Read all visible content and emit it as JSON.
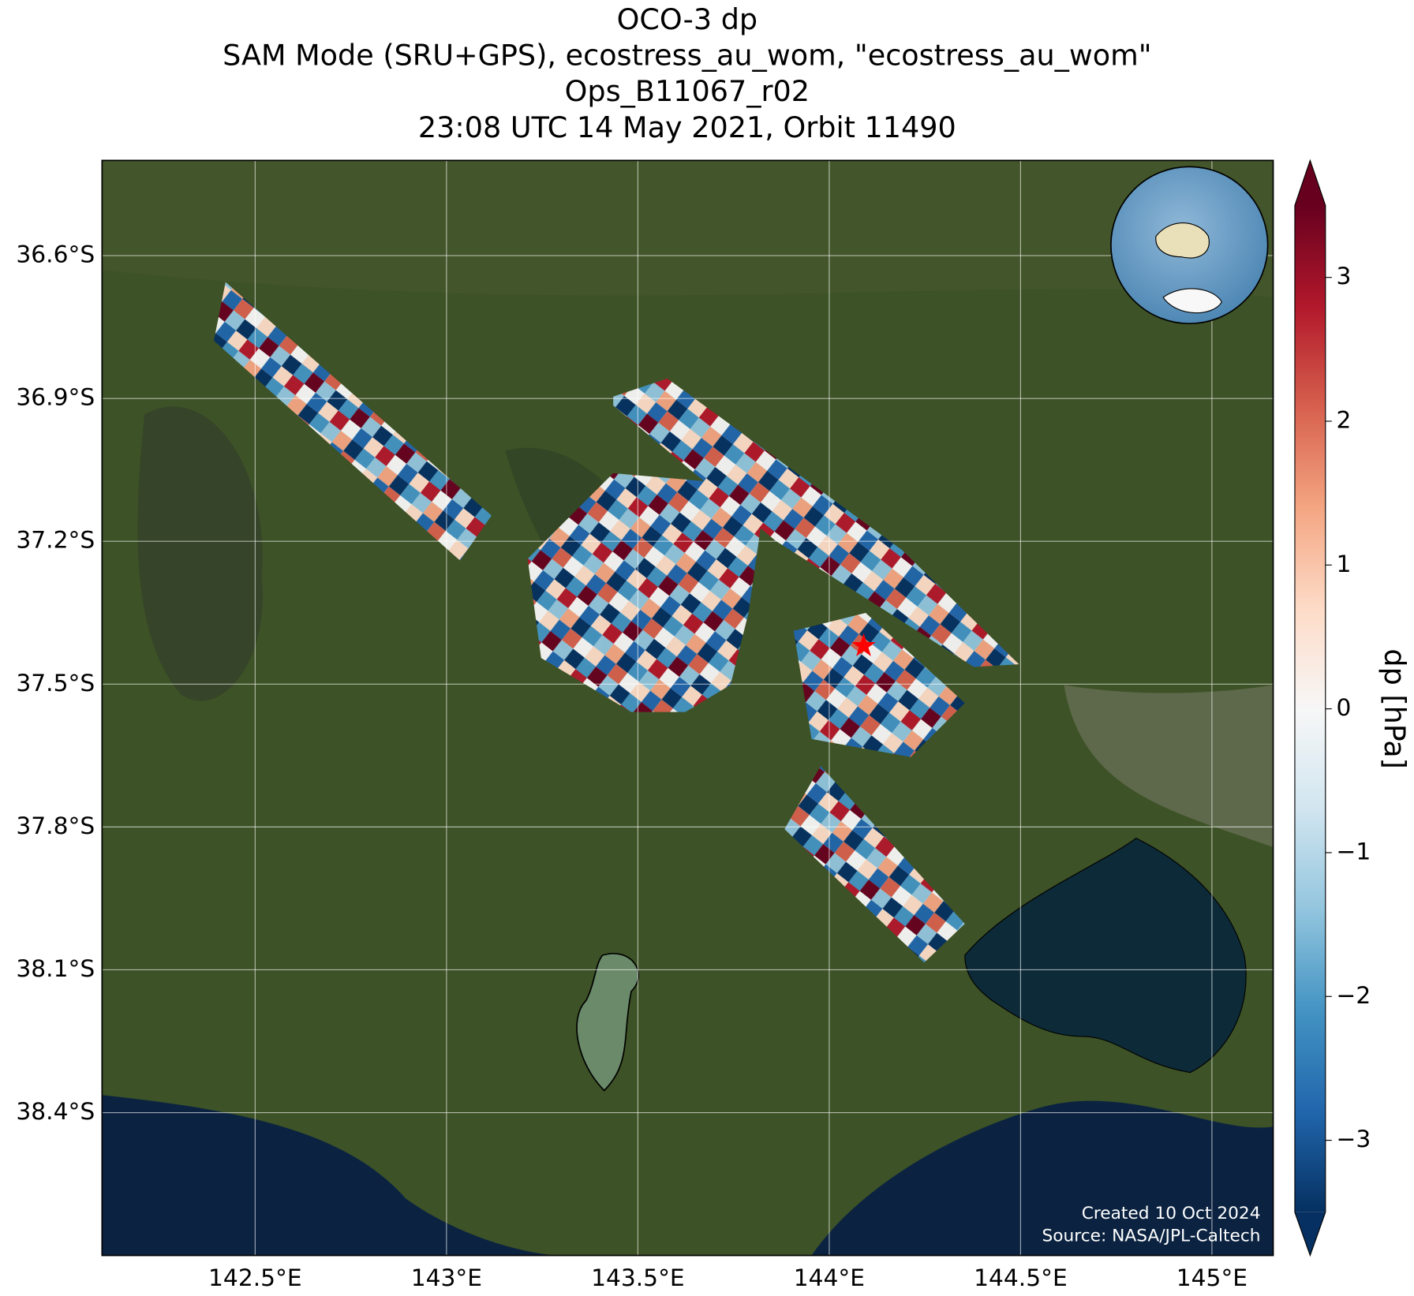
{
  "chart_data": {
    "type": "map",
    "title_lines": [
      "OCO-3 dp",
      "SAM Mode (SRU+GPS), ecostress_au_wom, \"ecostress_au_wom\"",
      "Ops_B11067_r02",
      "23:08 UTC 14 May 2021, Orbit 11490"
    ],
    "xlim": [
      142.1,
      145.16
    ],
    "ylim": [
      -38.7,
      -36.4
    ],
    "xticks": [
      {
        "value": 142.5,
        "label": "142.5°E"
      },
      {
        "value": 143,
        "label": "143°E"
      },
      {
        "value": 143.5,
        "label": "143.5°E"
      },
      {
        "value": 144,
        "label": "144°E"
      },
      {
        "value": 144.5,
        "label": "144.5°E"
      },
      {
        "value": 145,
        "label": "145°E"
      }
    ],
    "yticks": [
      {
        "value": -36.6,
        "label": "36.6°S"
      },
      {
        "value": -36.9,
        "label": "36.9°S"
      },
      {
        "value": -37.2,
        "label": "37.2°S"
      },
      {
        "value": -37.5,
        "label": "37.5°S"
      },
      {
        "value": -37.8,
        "label": "37.8°S"
      },
      {
        "value": -38.1,
        "label": "38.1°S"
      },
      {
        "value": -38.4,
        "label": "38.4°S"
      }
    ],
    "grid": true,
    "target": {
      "lon": 144.09,
      "lat": -37.42,
      "color": "#ff0000"
    },
    "colorbar": {
      "label": "dp [hPa]",
      "clim": [
        -3.5,
        3.5
      ],
      "colormap": "RdBu_r",
      "colors": [
        "#053061",
        "#2166ac",
        "#4393c3",
        "#92c5de",
        "#d1e5f0",
        "#f7f7f7",
        "#fddbc7",
        "#f4a582",
        "#d6604d",
        "#b2182b",
        "#67001f"
      ],
      "ticks": [
        {
          "value": -3,
          "label": "−3"
        },
        {
          "value": -2,
          "label": "−2"
        },
        {
          "value": -1,
          "label": "−1"
        },
        0,
        1,
        2,
        3
      ]
    },
    "annotations": [
      "Created 10 Oct 2024",
      "Source: NASA/JPL-Caltech"
    ]
  }
}
